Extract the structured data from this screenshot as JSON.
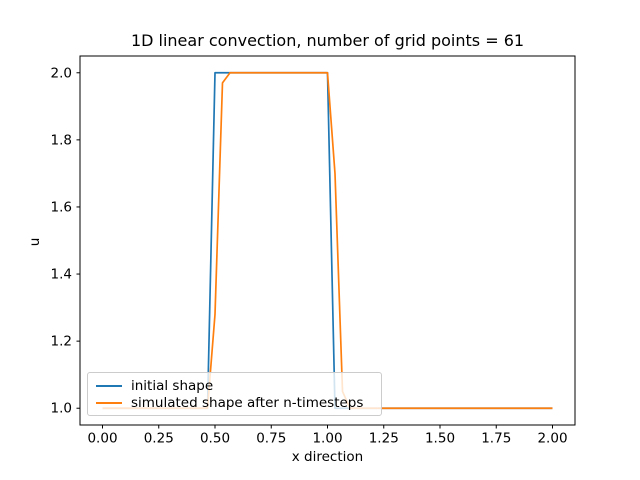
{
  "chart_data": {
    "type": "line",
    "title": "1D linear convection, number of grid points = 61",
    "xlabel": "x direction",
    "ylabel": "u",
    "xlim": [
      -0.1,
      2.1
    ],
    "ylim": [
      0.95,
      2.05
    ],
    "grid": false,
    "legend_position": "lower left",
    "xticks": [
      0,
      0.25,
      0.5,
      0.75,
      1.0,
      1.25,
      1.5,
      1.75,
      2.0
    ],
    "xtick_labels": [
      "0.00",
      "0.25",
      "0.50",
      "0.75",
      "1.00",
      "1.25",
      "1.50",
      "1.75",
      "2.00"
    ],
    "yticks": [
      1.0,
      1.2,
      1.4,
      1.6,
      1.8,
      2.0
    ],
    "ytick_labels": [
      "1.0",
      "1.2",
      "1.4",
      "1.6",
      "1.8",
      "2.0"
    ],
    "axis_color": "#000000",
    "text_color": "#000000",
    "legend": {
      "border_color": "#cccccc",
      "background": "rgba(255,255,255,0.8)"
    },
    "series": [
      {
        "name": "initial shape",
        "color": "#1f77b4",
        "points": [
          [
            0,
            1
          ],
          [
            0.4667,
            1
          ],
          [
            0.5,
            2
          ],
          [
            1.0,
            2
          ],
          [
            1.0333,
            1
          ],
          [
            2.0,
            1
          ]
        ]
      },
      {
        "name": "simulated shape after n-timesteps",
        "color": "#ff7f0e",
        "points": [
          [
            0,
            1
          ],
          [
            0.4667,
            1
          ],
          [
            0.5,
            1.28
          ],
          [
            0.5333,
            1.97
          ],
          [
            0.5667,
            2.0
          ],
          [
            1.0,
            2.0
          ],
          [
            1.0333,
            1.7
          ],
          [
            1.0667,
            1.05
          ],
          [
            1.1,
            1.0
          ],
          [
            2.0,
            1.0
          ]
        ]
      }
    ]
  }
}
